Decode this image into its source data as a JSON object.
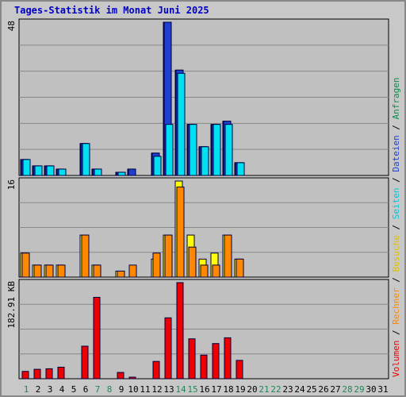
{
  "title": "Tages-Statistik im Monat Juni 2025",
  "legend": {
    "volumen": "Volumen",
    "sep1": " / ",
    "rechner": "Rechner",
    "sep2": " / ",
    "besuche": "Besuche",
    "sep3": " / ",
    "seiten": "Seiten",
    "sep4": " / ",
    "dateien": "Dateien",
    "sep5": " / ",
    "anfragen": "Anfragen"
  },
  "colors": {
    "anfragen": "#0c8c4c",
    "dateien": "#2040d0",
    "seiten": "#00e0f0",
    "besuche": "#ffff00",
    "rechner": "#ff8800",
    "volumen": "#ee0000",
    "weekday_label": "#000000",
    "weekend_label": "#228855",
    "frame_bg": "#c0c0c0"
  },
  "chart_data": {
    "type": "bar",
    "days": [
      "1",
      "2",
      "3",
      "4",
      "5",
      "6",
      "7",
      "8",
      "9",
      "10",
      "11",
      "12",
      "13",
      "14",
      "15",
      "16",
      "17",
      "18",
      "19",
      "20",
      "21",
      "22",
      "23",
      "24",
      "25",
      "26",
      "27",
      "28",
      "29",
      "30",
      "31"
    ],
    "weekend_days": [
      "1",
      "7",
      "8",
      "14",
      "15",
      "21",
      "22",
      "28",
      "29"
    ],
    "panels": [
      {
        "ylabel": "48",
        "ymax": 48,
        "series": [
          {
            "name": "Anfragen",
            "values": [
              5,
              3,
              3,
              2,
              0,
              10,
              2,
              0,
              1,
              2,
              0,
              7,
              48,
              33,
              16,
              9,
              16,
              17,
              4,
              0,
              0,
              0,
              0,
              0,
              0,
              0,
              0,
              0,
              0,
              0,
              0
            ]
          },
          {
            "name": "Dateien",
            "values": [
              5,
              3,
              3,
              2,
              0,
              10,
              2,
              0,
              1,
              2,
              0,
              7,
              48,
              33,
              16,
              9,
              16,
              17,
              4,
              0,
              0,
              0,
              0,
              0,
              0,
              0,
              0,
              0,
              0,
              0,
              0
            ]
          },
          {
            "name": "Seiten",
            "values": [
              5,
              3,
              3,
              2,
              0,
              10,
              2,
              0,
              1,
              0,
              0,
              6,
              16,
              32,
              16,
              9,
              16,
              16,
              4,
              0,
              0,
              0,
              0,
              0,
              0,
              0,
              0,
              0,
              0,
              0,
              0
            ]
          }
        ]
      },
      {
        "ylabel": "16",
        "ymax": 16,
        "series": [
          {
            "name": "Besuche",
            "values": [
              4,
              2,
              2,
              2,
              0,
              7,
              2,
              0,
              1,
              0,
              0,
              3,
              7,
              16,
              7,
              3,
              4,
              7,
              3,
              0,
              0,
              0,
              0,
              0,
              0,
              0,
              0,
              0,
              0,
              0,
              0
            ]
          },
          {
            "name": "Rechner",
            "values": [
              4,
              2,
              2,
              2,
              0,
              7,
              2,
              0,
              1,
              2,
              0,
              4,
              7,
              15,
              5,
              2,
              2,
              7,
              3,
              0,
              0,
              0,
              0,
              0,
              0,
              0,
              0,
              0,
              0,
              0,
              0
            ]
          }
        ]
      },
      {
        "ylabel": "182.91 KB",
        "ymax": 182.91,
        "series": [
          {
            "name": "Volumen",
            "values": [
              14,
              18,
              19,
              22,
              0,
              62,
              155,
              0,
              12,
              2,
              0,
              33,
              116,
              183,
              76,
              45,
              67,
              78,
              35,
              0,
              0,
              0,
              0,
              0,
              0,
              0,
              0,
              0,
              0,
              0,
              0
            ]
          }
        ]
      }
    ]
  }
}
